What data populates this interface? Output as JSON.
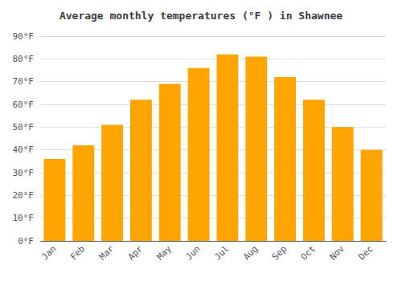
{
  "chart_data": {
    "type": "bar",
    "title": "Average monthly temperatures (°F ) in Shawnee",
    "categories": [
      "Jan",
      "Feb",
      "Mar",
      "Apr",
      "May",
      "Jun",
      "Jul",
      "Aug",
      "Sep",
      "Oct",
      "Nov",
      "Dec"
    ],
    "values": [
      36,
      42,
      51,
      62,
      69,
      76,
      82,
      81,
      72,
      62,
      50,
      40
    ],
    "color": "#FFA500",
    "ylim": [
      0,
      90
    ],
    "yticks": [
      {
        "value": 0,
        "label": "0°F"
      },
      {
        "value": 10,
        "label": "10°F"
      },
      {
        "value": 20,
        "label": "20°F"
      },
      {
        "value": 30,
        "label": "30°F"
      },
      {
        "value": 40,
        "label": "40°F"
      },
      {
        "value": 50,
        "label": "50°F"
      },
      {
        "value": 60,
        "label": "60°F"
      },
      {
        "value": 70,
        "label": "70°F"
      },
      {
        "value": 80,
        "label": "80°F"
      },
      {
        "value": 90,
        "label": "90°F"
      }
    ],
    "grid": true
  }
}
